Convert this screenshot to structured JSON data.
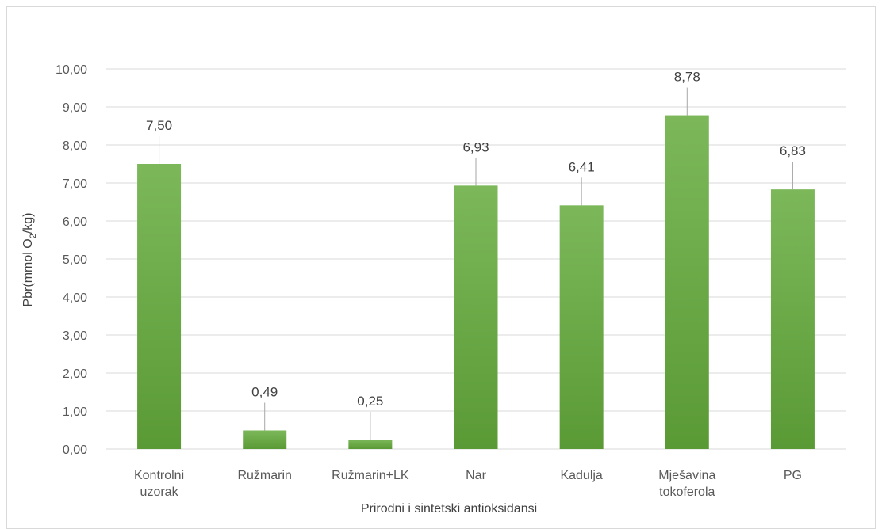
{
  "chart_data": {
    "type": "bar",
    "categories": [
      [
        "Kontrolni",
        "uzorak"
      ],
      [
        "Ružmarin"
      ],
      [
        "Ružmarin+LK"
      ],
      [
        "Nar"
      ],
      [
        "Kadulja"
      ],
      [
        "Mješavina",
        "tokoferola"
      ],
      [
        "PG"
      ]
    ],
    "values": [
      7.5,
      0.49,
      0.25,
      6.93,
      6.41,
      8.78,
      6.83
    ],
    "value_labels": [
      "7,50",
      "0,49",
      "0,25",
      "6,93",
      "6,41",
      "8,78",
      "6,83"
    ],
    "ylim": [
      0,
      10
    ],
    "yticks": [
      "0,00",
      "1,00",
      "2,00",
      "3,00",
      "4,00",
      "5,00",
      "6,00",
      "7,00",
      "8,00",
      "9,00",
      "10,00"
    ],
    "ylabel_prefix": "Pbr(mmol O",
    "ylabel_sub": "2",
    "ylabel_suffix": "/kg)",
    "xlabel": "Prirodni i sintetski antioksidansi",
    "grid": true,
    "bar_color_top": "#7cb85a",
    "bar_color_bottom": "#5a9a35",
    "gridline_color": "#d9d9d9",
    "leader_color": "#a6a6a6"
  }
}
